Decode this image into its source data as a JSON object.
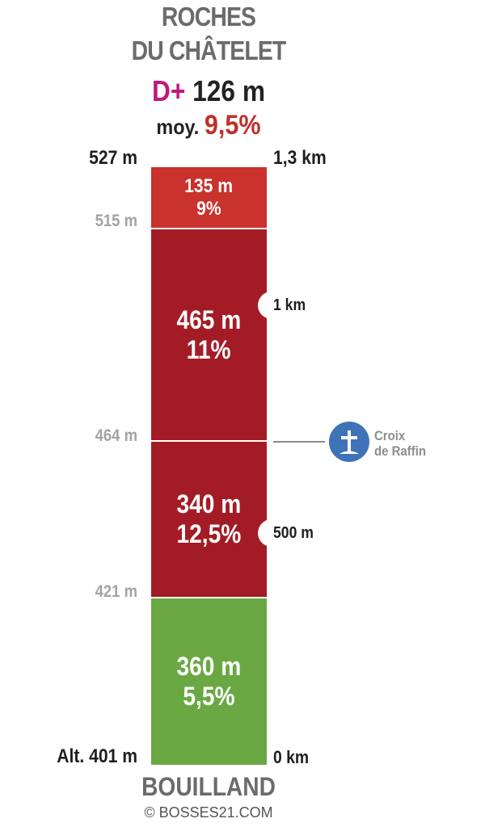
{
  "header": {
    "title_line1": "ROCHES",
    "title_line2": "DU CHÂTELET",
    "gain_prefix": "D+",
    "gain_value": "126 m",
    "avg_label": "moy.",
    "avg_value": "9,5%"
  },
  "top_left_altitude": "527 m",
  "top_right_distance": "1,3 km",
  "segments": [
    {
      "length": "135 m",
      "gradient": "9%",
      "color": "#c9322d"
    },
    {
      "length": "465 m",
      "gradient": "11%",
      "color": "#a31c25"
    },
    {
      "length": "340 m",
      "gradient": "12,5%",
      "color": "#a31c25"
    },
    {
      "length": "360 m",
      "gradient": "5,5%",
      "color": "#6aa843"
    }
  ],
  "altitudes": {
    "a515": "515 m",
    "a464": "464 m",
    "a421": "421 m",
    "base": "Alt. 401 m"
  },
  "distances": {
    "km1": "1 km",
    "m500": "500 m",
    "start": "0 km"
  },
  "poi": {
    "label_line1": "Croix",
    "label_line2": "de Raffin",
    "icon": "cross-icon",
    "color": "#3f73b8"
  },
  "footer": {
    "start_name": "BOUILLAND",
    "copyright": "© BOSSES21.COM"
  }
}
